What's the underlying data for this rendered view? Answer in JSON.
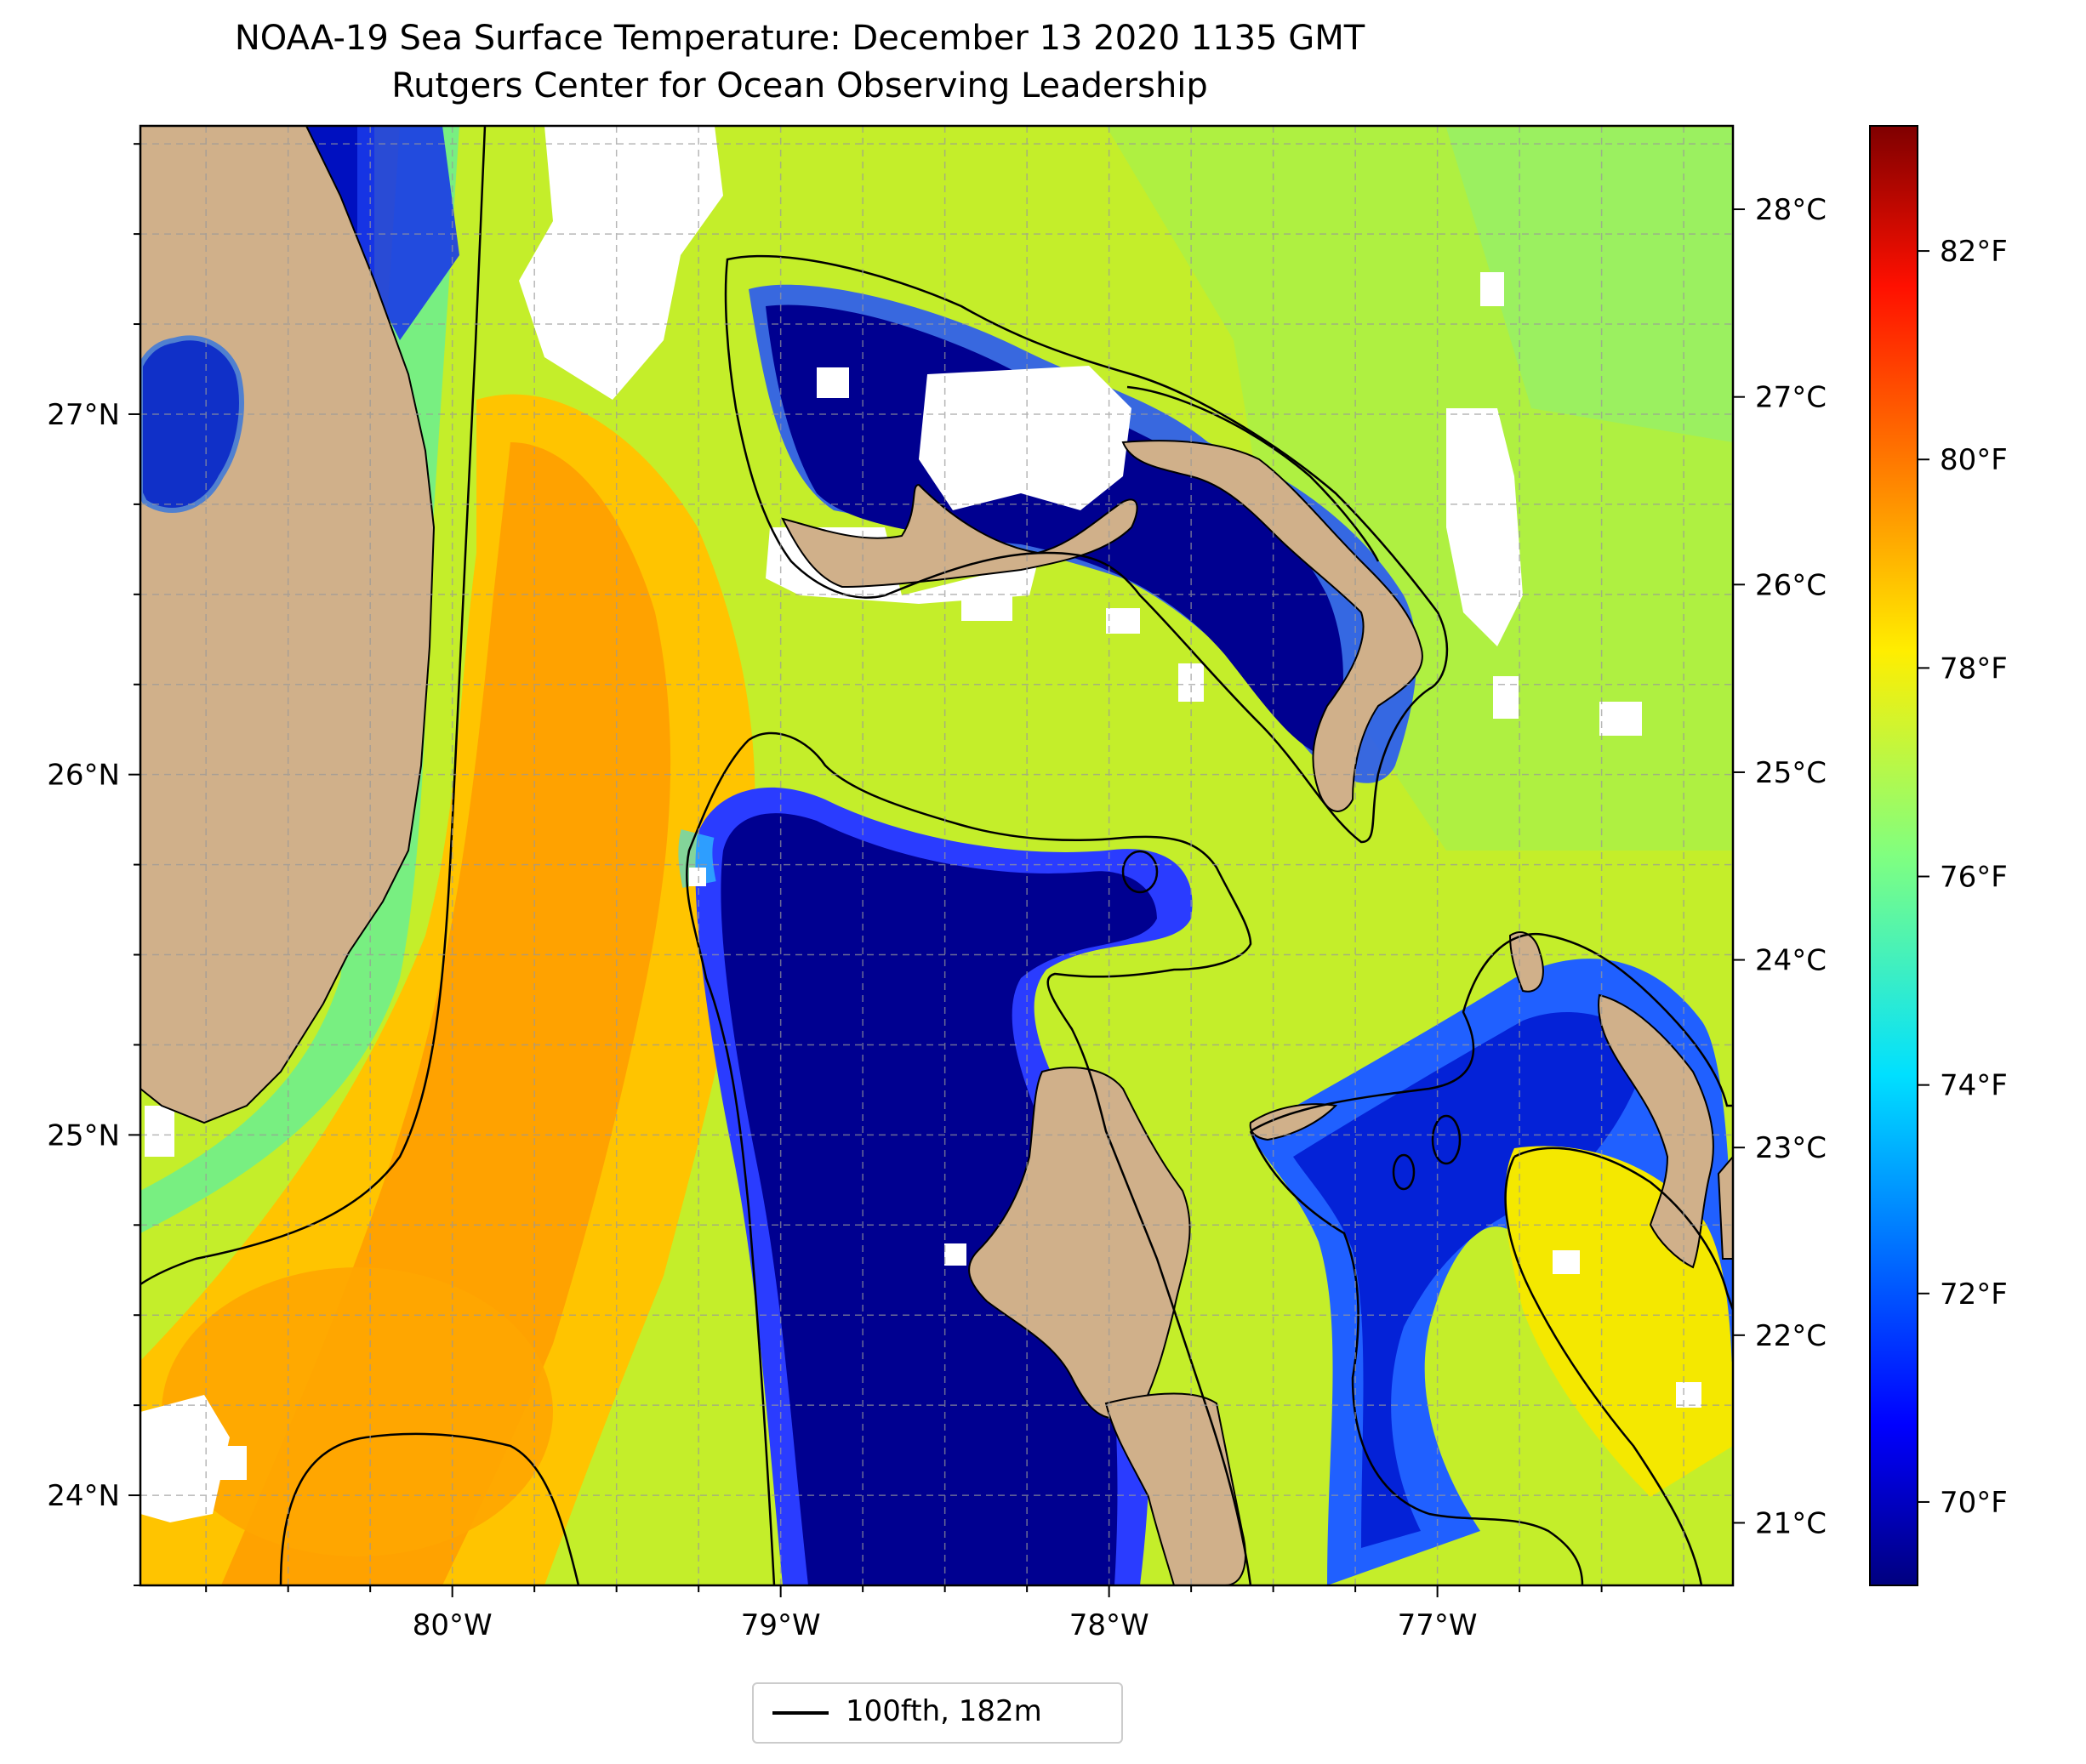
{
  "title": "NOAA-19 Sea Surface Temperature: December 13 2020 1135 GMT",
  "subtitle": "Rutgers Center for Ocean Observing Leadership",
  "map": {
    "lon_range": [
      -80.95,
      -76.1
    ],
    "lat_range": [
      23.75,
      27.8
    ],
    "lon_ticks": [
      {
        "value": -80,
        "label": "80°W"
      },
      {
        "value": -79,
        "label": "79°W"
      },
      {
        "value": -78,
        "label": "78°W"
      },
      {
        "value": -77,
        "label": "77°W"
      }
    ],
    "lat_ticks": [
      {
        "value": 24,
        "label": "24°N"
      },
      {
        "value": 25,
        "label": "25°N"
      },
      {
        "value": 26,
        "label": "26°N"
      },
      {
        "value": 27,
        "label": "27°N"
      }
    ],
    "gridlines": true,
    "colors": {
      "land": "#d0b08a",
      "cloud": "#ffffff",
      "warm_stream": "#ffa000",
      "shelf_cold": "#00008f",
      "ocean_mid": "#c8f020",
      "contour": "#000000"
    }
  },
  "colorbar": {
    "colormap": "jet",
    "range_f": [
      69.2,
      83.2
    ],
    "celsius_ticks": [
      {
        "value": 21,
        "label": "21°C"
      },
      {
        "value": 22,
        "label": "22°C"
      },
      {
        "value": 23,
        "label": "23°C"
      },
      {
        "value": 24,
        "label": "24°C"
      },
      {
        "value": 25,
        "label": "25°C"
      },
      {
        "value": 26,
        "label": "26°C"
      },
      {
        "value": 27,
        "label": "27°C"
      },
      {
        "value": 28,
        "label": "28°C"
      }
    ],
    "fahrenheit_ticks": [
      {
        "value": 70,
        "label": "70°F"
      },
      {
        "value": 72,
        "label": "72°F"
      },
      {
        "value": 74,
        "label": "74°F"
      },
      {
        "value": 76,
        "label": "76°F"
      },
      {
        "value": 78,
        "label": "78°F"
      },
      {
        "value": 80,
        "label": "80°F"
      },
      {
        "value": 82,
        "label": "82°F"
      }
    ]
  },
  "legend": {
    "label": "100fth, 182m",
    "placement": "below-map"
  }
}
